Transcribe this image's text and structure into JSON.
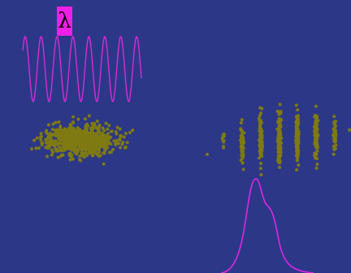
{
  "label": {
    "text": "λ"
  }
}
